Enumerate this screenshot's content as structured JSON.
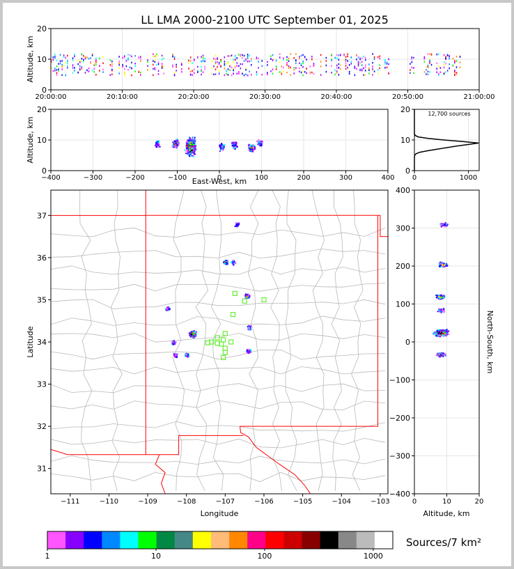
{
  "title": "LL LMA 2000-2100 UTC September 01, 2025",
  "colors": {
    "border": "#c8c8c8",
    "state_line": "#ff0000",
    "county_line": "#b8b8b8",
    "station": "#66ee33",
    "profile": "#000000",
    "grid": "#e6e6e6"
  },
  "chart_data": [
    {
      "id": "time_height",
      "type": "scatter",
      "ylabel": "Altitude, km",
      "ylim": [
        0,
        20
      ],
      "yticks": [
        "0",
        "10",
        "20"
      ],
      "xticks": [
        "20:00:00",
        "20:10:00",
        "20:20:00",
        "20:30:00",
        "20:40:00",
        "20:50:00",
        "21:00:00"
      ],
      "xlim_minutes": [
        0,
        60
      ],
      "active_minutes": [
        [
          0,
          16
        ],
        [
          17,
          40.5
        ],
        [
          40.5,
          48
        ],
        [
          50,
          51
        ],
        [
          52,
          58
        ]
      ],
      "altitude_band_km": [
        5,
        12
      ]
    },
    {
      "id": "east_west_height",
      "type": "scatter",
      "xlabel": "East-West, km",
      "ylabel": "Altitude, km",
      "xlim": [
        -400,
        400
      ],
      "ylim": [
        0,
        20
      ],
      "xticks": [
        "−400",
        "−300",
        "−200",
        "−100",
        "0",
        "100",
        "200",
        "300",
        "400"
      ],
      "yticks": [
        "0",
        "10",
        "20"
      ],
      "clusters": [
        {
          "x_km": -70,
          "alt_km": 8,
          "intensity": "high"
        },
        {
          "x_km": -105,
          "alt_km": 9,
          "intensity": "medium"
        },
        {
          "x_km": 75,
          "alt_km": 7.5,
          "intensity": "medium"
        },
        {
          "x_km": 35,
          "alt_km": 8.5,
          "intensity": "low"
        },
        {
          "x_km": 5,
          "alt_km": 8,
          "intensity": "low"
        },
        {
          "x_km": 95,
          "alt_km": 9,
          "intensity": "low"
        },
        {
          "x_km": -150,
          "alt_km": 9,
          "intensity": "low"
        }
      ]
    },
    {
      "id": "altitude_histogram",
      "type": "line",
      "annotation": "12,700 sources",
      "xlim": [
        0,
        1200
      ],
      "ylim": [
        0,
        20
      ],
      "xticks": [
        "0",
        "1000"
      ],
      "yticks": [
        "0",
        "10",
        "20"
      ],
      "profile": [
        [
          0,
          0
        ],
        [
          0,
          3
        ],
        [
          0,
          4
        ],
        [
          5,
          5
        ],
        [
          30,
          5.5
        ],
        [
          100,
          6
        ],
        [
          250,
          6.5
        ],
        [
          420,
          7
        ],
        [
          600,
          7.5
        ],
        [
          780,
          8
        ],
        [
          980,
          8.5
        ],
        [
          1190,
          9
        ],
        [
          900,
          9.5
        ],
        [
          550,
          10
        ],
        [
          260,
          10.5
        ],
        [
          70,
          11
        ],
        [
          15,
          11.5
        ],
        [
          0,
          12
        ],
        [
          0,
          13
        ],
        [
          0,
          20
        ]
      ]
    },
    {
      "id": "plan_view",
      "type": "scatter",
      "xlabel": "Longitude",
      "ylabel": "Latitude",
      "xlim": [
        -111.5,
        -102.8
      ],
      "ylim": [
        30.4,
        37.6
      ],
      "xticks": [
        "−111",
        "−110",
        "−109",
        "−108",
        "−107",
        "−106",
        "−105",
        "−104",
        "−103"
      ],
      "yticks": [
        "31",
        "32",
        "33",
        "34",
        "35",
        "36",
        "37"
      ],
      "clusters": [
        {
          "lon": -107.85,
          "lat": 34.2,
          "intensity": "high"
        },
        {
          "lon": -106.45,
          "lat": 35.1,
          "intensity": "medium"
        },
        {
          "lon": -107.0,
          "lat": 35.9,
          "intensity": "medium"
        },
        {
          "lon": -106.8,
          "lat": 35.9,
          "intensity": "low"
        },
        {
          "lon": -106.4,
          "lat": 34.35,
          "intensity": "low"
        },
        {
          "lon": -106.4,
          "lat": 33.8,
          "intensity": "low"
        },
        {
          "lon": -108.35,
          "lat": 34.0,
          "intensity": "low"
        },
        {
          "lon": -108.0,
          "lat": 33.7,
          "intensity": "low"
        },
        {
          "lon": -108.5,
          "lat": 34.8,
          "intensity": "low"
        },
        {
          "lon": -108.3,
          "lat": 33.7,
          "intensity": "low"
        },
        {
          "lon": -106.7,
          "lat": 36.8,
          "intensity": "low"
        }
      ],
      "stations": [
        [
          -106.75,
          35.15
        ],
        [
          -106.0,
          35.0
        ],
        [
          -106.5,
          34.97
        ],
        [
          -106.8,
          34.65
        ],
        [
          -107.0,
          34.2
        ],
        [
          -107.2,
          34.1
        ],
        [
          -107.05,
          34.05
        ],
        [
          -106.85,
          34.0
        ],
        [
          -107.35,
          34.0
        ],
        [
          -107.2,
          33.97
        ],
        [
          -107.1,
          33.95
        ],
        [
          -107.0,
          33.85
        ],
        [
          -107.0,
          33.75
        ],
        [
          -107.05,
          33.63
        ],
        [
          -107.45,
          33.98
        ]
      ]
    },
    {
      "id": "north_south_height",
      "type": "scatter",
      "xlabel": "Altitude, km",
      "ylabel": "North-South, km",
      "xlim": [
        0,
        20
      ],
      "ylim": [
        -400,
        400
      ],
      "xticks": [
        "0",
        "10",
        "20"
      ],
      "yticks": [
        "−400",
        "−300",
        "−200",
        "−100",
        "0",
        "100",
        "200",
        "300",
        "400"
      ],
      "clusters": [
        {
          "alt_km": 8,
          "y_km": 25,
          "intensity": "high"
        },
        {
          "alt_km": 8,
          "y_km": 120,
          "intensity": "medium"
        },
        {
          "alt_km": 8.5,
          "y_km": 205,
          "intensity": "medium"
        },
        {
          "alt_km": 8,
          "y_km": -32,
          "intensity": "medium"
        },
        {
          "alt_km": 8,
          "y_km": 85,
          "intensity": "low"
        },
        {
          "alt_km": 9,
          "y_km": 310,
          "intensity": "low"
        }
      ]
    },
    {
      "id": "colorbar",
      "type": "heatmap",
      "label": "Sources/7 km²",
      "tick_labels": [
        "1",
        "10",
        "100",
        "1000"
      ],
      "xlim_log10": [
        0,
        3.18
      ],
      "colors": [
        "#ff55ff",
        "#8800ff",
        "#0000ff",
        "#0088ff",
        "#00ffff",
        "#00ff00",
        "#008844",
        "#448888",
        "#ffff00",
        "#ffbb77",
        "#ff8800",
        "#ff0088",
        "#ff0000",
        "#cc0000",
        "#880000",
        "#000000",
        "#888888",
        "#bbbbbb",
        "#ffffff"
      ]
    }
  ]
}
